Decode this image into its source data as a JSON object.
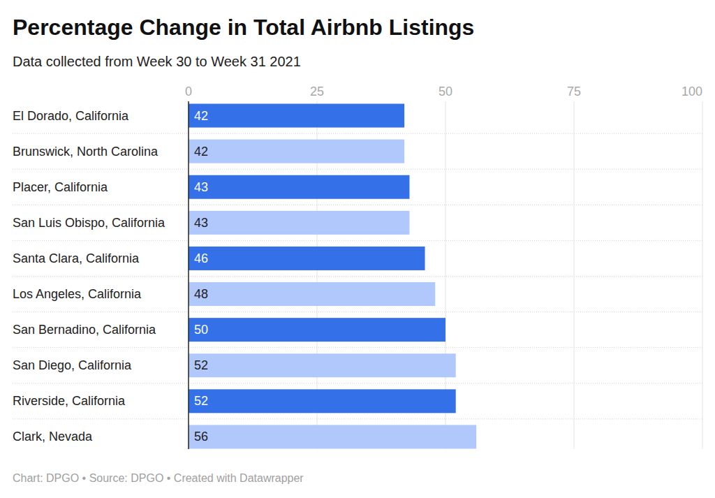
{
  "chart_data": {
    "type": "bar",
    "orientation": "horizontal",
    "title": "Percentage Change in Total Airbnb Listings",
    "subtitle": "Data collected from Week 30 to Week 31 2021",
    "categories": [
      "El Dorado, California",
      "Brunswick, North Carolina",
      "Placer, California",
      "San Luis Obispo, California",
      "Santa Clara, California",
      "Los Angeles, California",
      "San Bernadino, California",
      "San Diego, California",
      "Riverside, California",
      "Clark, Nevada"
    ],
    "values": [
      42,
      42,
      43,
      43,
      46,
      48,
      50,
      52,
      52,
      56
    ],
    "colors": [
      "#3470e8",
      "#b0c8fc",
      "#3470e8",
      "#b0c8fc",
      "#3470e8",
      "#b0c8fc",
      "#3470e8",
      "#b0c8fc",
      "#3470e8",
      "#b0c8fc"
    ],
    "xlim": [
      0,
      100
    ],
    "xticks": [
      0,
      25,
      50,
      75,
      100
    ],
    "grid": true,
    "data_labels": true,
    "annotations": [
      "Chart: DPGO • Source: DPGO • Created with Datawrapper"
    ]
  }
}
